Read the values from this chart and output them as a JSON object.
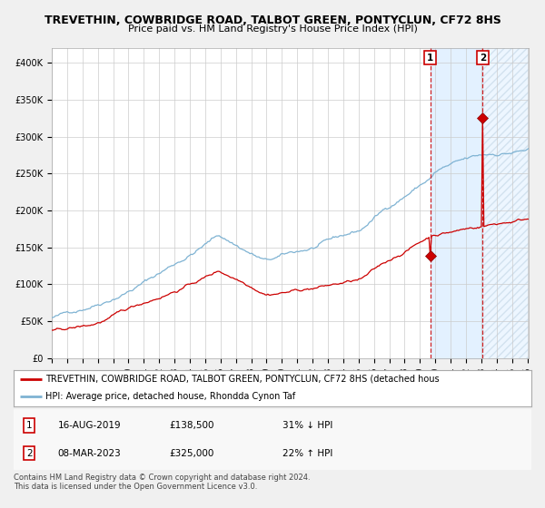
{
  "title": "TREVETHIN, COWBRIDGE ROAD, TALBOT GREEN, PONTYCLUN, CF72 8HS",
  "subtitle": "Price paid vs. HM Land Registry's House Price Index (HPI)",
  "ylim": [
    0,
    420000
  ],
  "yticks": [
    0,
    50000,
    100000,
    150000,
    200000,
    250000,
    300000,
    350000,
    400000
  ],
  "ytick_labels": [
    "£0",
    "£50K",
    "£100K",
    "£150K",
    "£200K",
    "£250K",
    "£300K",
    "£350K",
    "£400K"
  ],
  "hpi_color": "#7fb3d3",
  "price_color": "#cc0000",
  "plot_bg": "#ffffff",
  "grid_color": "#cccccc",
  "shade_color": "#ddeeff",
  "marker1_date_idx": 296,
  "marker1_price": 138500,
  "marker2_date_idx": 337,
  "marker2_price": 325000,
  "n_months": 374,
  "legend_price_label": "TREVETHIN, COWBRIDGE ROAD, TALBOT GREEN, PONTYCLUN, CF72 8HS (detached hous",
  "legend_hpi_label": "HPI: Average price, detached house, Rhondda Cynon Taf",
  "table_rows": [
    [
      "1",
      "16-AUG-2019",
      "£138,500",
      "31% ↓ HPI"
    ],
    [
      "2",
      "08-MAR-2023",
      "£325,000",
      "22% ↑ HPI"
    ]
  ],
  "footnote": "Contains HM Land Registry data © Crown copyright and database right 2024.\nThis data is licensed under the Open Government Licence v3.0.",
  "title_fontsize": 9,
  "subtitle_fontsize": 8,
  "tick_fontsize": 7,
  "legend_fontsize": 7,
  "table_fontsize": 7.5,
  "footnote_fontsize": 6.0
}
